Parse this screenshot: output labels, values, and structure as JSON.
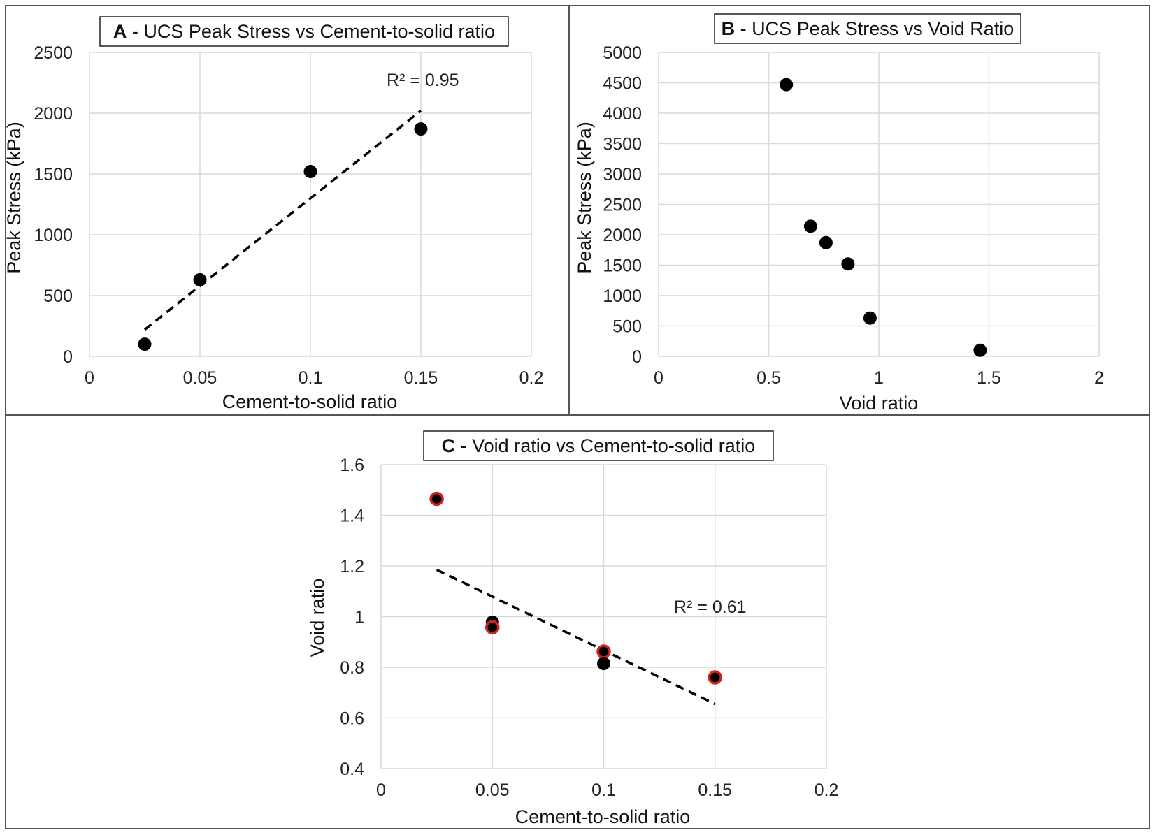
{
  "chart_data": [
    {
      "id": "A",
      "type": "scatter",
      "title_letter": "A",
      "title": " - UCS Peak Stress vs Cement-to-solid ratio",
      "xlabel": "Cement-to-solid ratio",
      "ylabel": "Peak Stress (kPa)",
      "xlim": [
        0,
        0.2
      ],
      "ylim": [
        0,
        2500
      ],
      "xticks": [
        0,
        0.05,
        0.1,
        0.15,
        0.2
      ],
      "yticks": [
        0,
        500,
        1000,
        1500,
        2000,
        2500
      ],
      "grid": true,
      "points": [
        {
          "x": 0.025,
          "y": 100
        },
        {
          "x": 0.05,
          "y": 630
        },
        {
          "x": 0.1,
          "y": 1520
        },
        {
          "x": 0.15,
          "y": 1870
        }
      ],
      "trendline": {
        "x": [
          0.025,
          0.15
        ],
        "y": [
          220,
          2020
        ]
      },
      "r2_label": "R² = 0.95",
      "colors": {
        "point": "#000000",
        "trend": "#000000",
        "grid": "#d9d9d9"
      }
    },
    {
      "id": "B",
      "type": "scatter",
      "title_letter": "B",
      "title": " - UCS Peak Stress vs Void Ratio",
      "xlabel": "Void ratio",
      "ylabel": "Peak Stress (kPa)",
      "xlim": [
        0,
        2
      ],
      "ylim": [
        0,
        5000
      ],
      "xticks": [
        0,
        0.5,
        1,
        1.5,
        2
      ],
      "yticks": [
        0,
        500,
        1000,
        1500,
        2000,
        2500,
        3000,
        3500,
        4000,
        4500,
        5000
      ],
      "grid": true,
      "points": [
        {
          "x": 0.58,
          "y": 4470
        },
        {
          "x": 0.69,
          "y": 2140
        },
        {
          "x": 0.76,
          "y": 1870
        },
        {
          "x": 0.86,
          "y": 1520
        },
        {
          "x": 0.96,
          "y": 630
        },
        {
          "x": 1.46,
          "y": 100
        }
      ],
      "colors": {
        "point": "#000000",
        "grid": "#d9d9d9"
      }
    },
    {
      "id": "C",
      "type": "scatter",
      "title_letter": "C",
      "title": " - Void ratio vs Cement-to-solid ratio",
      "xlabel": "Cement-to-solid ratio",
      "ylabel": "Void ratio",
      "xlim": [
        0,
        0.2
      ],
      "ylim": [
        0.4,
        1.6
      ],
      "xticks": [
        0,
        0.05,
        0.1,
        0.15,
        0.2
      ],
      "yticks": [
        0.4,
        0.6,
        0.8,
        1,
        1.2,
        1.4,
        1.6
      ],
      "grid": true,
      "points": [
        {
          "x": 0.025,
          "y": 1.465,
          "outlined": true
        },
        {
          "x": 0.05,
          "y": 0.978,
          "outlined": false
        },
        {
          "x": 0.05,
          "y": 0.958,
          "outlined": true
        },
        {
          "x": 0.1,
          "y": 0.862,
          "outlined": true
        },
        {
          "x": 0.1,
          "y": 0.815,
          "outlined": false
        },
        {
          "x": 0.15,
          "y": 0.76,
          "outlined": true
        }
      ],
      "trendline": {
        "x": [
          0.025,
          0.15
        ],
        "y": [
          1.185,
          0.655
        ]
      },
      "r2_label": "R² = 0.61",
      "colors": {
        "point": "#000000",
        "outline": "#d62020",
        "trend": "#000000",
        "grid": "#d9d9d9"
      }
    }
  ]
}
